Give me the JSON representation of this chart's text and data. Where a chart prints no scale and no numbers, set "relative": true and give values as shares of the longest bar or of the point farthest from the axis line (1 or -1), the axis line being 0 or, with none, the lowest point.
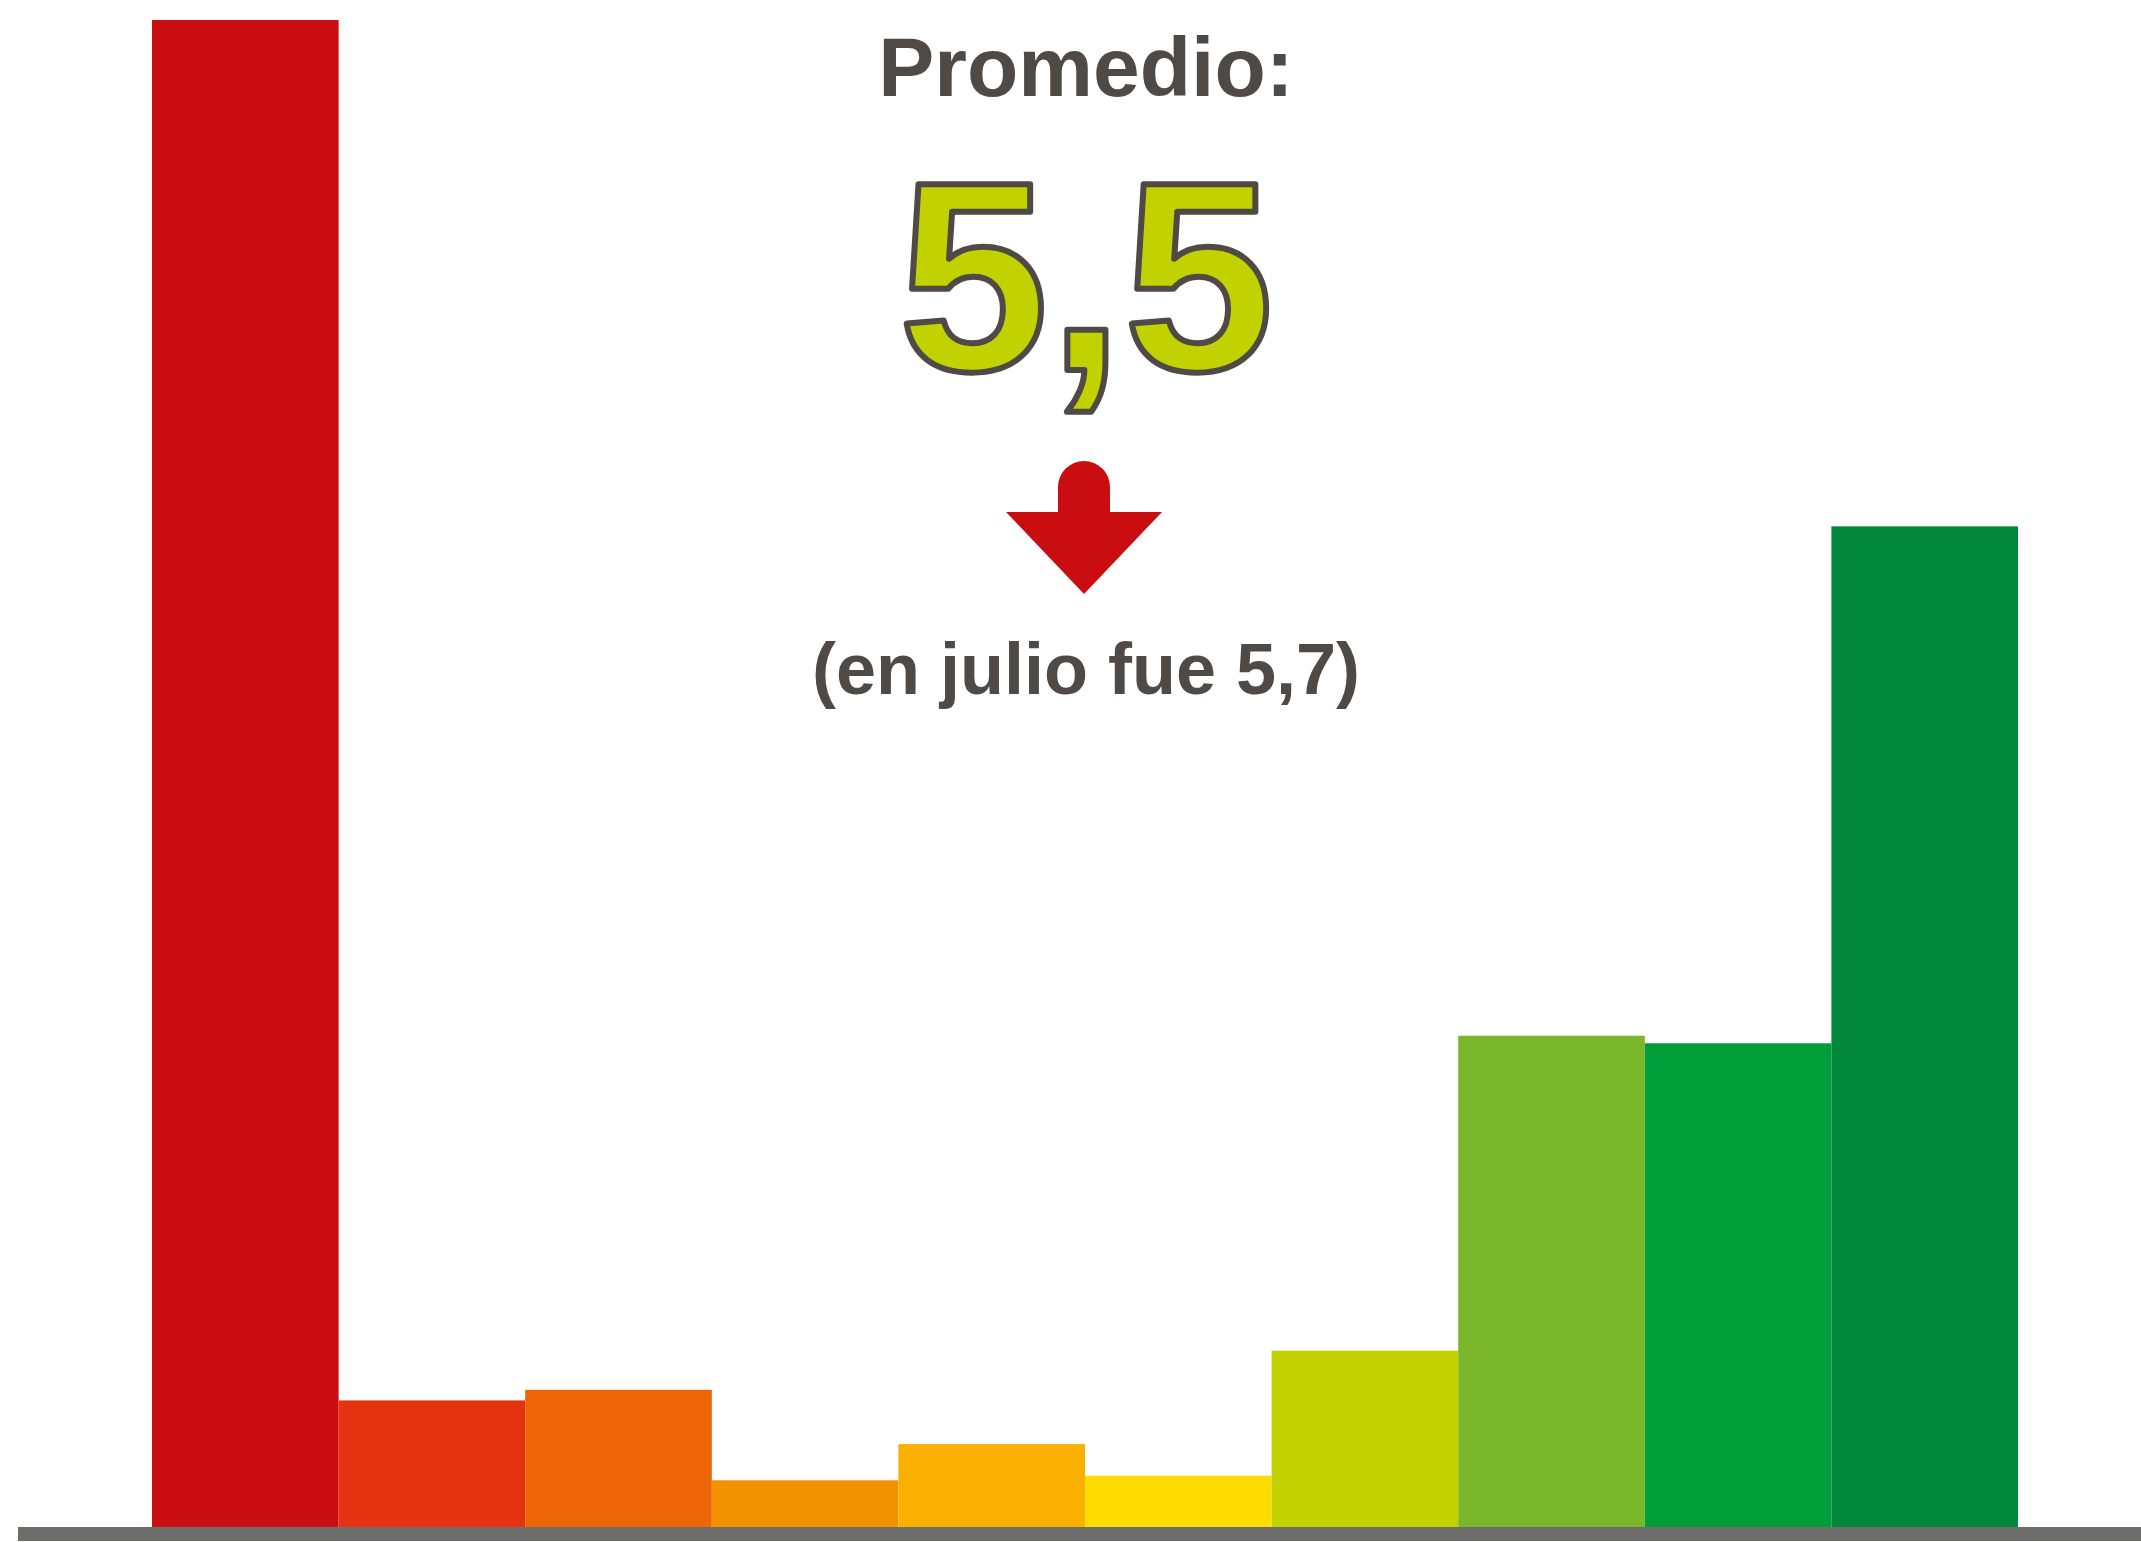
{
  "chart_data": {
    "type": "bar",
    "relative": true,
    "title": "Promedio:",
    "subtitle": "5,5",
    "annotations": [
      "(en julio fue 5,7)"
    ],
    "categories": [
      null,
      null,
      null,
      null,
      null,
      null,
      null,
      null,
      null,
      null
    ],
    "values": [
      1,
      0.084,
      0.091,
      0.031,
      0.055,
      0.034,
      0.117,
      0.326,
      0.321,
      0.664
    ],
    "colors": [
      "#c90d11",
      "#e53312",
      "#ec6607",
      "#f39200",
      "#f9b000",
      "#ffdc00",
      "#c2d100",
      "#7ab72a",
      "#009e3a",
      "#008739"
    ]
  }
}
